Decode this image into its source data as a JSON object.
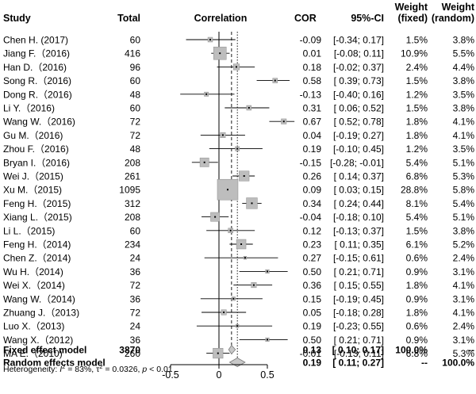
{
  "chart_data": {
    "type": "forest",
    "headers": {
      "study": "Study",
      "total": "Total",
      "plot": "Correlation",
      "estimate": "COR",
      "ci": "95%-CI",
      "weight_fixed_1": "Weight",
      "weight_fixed_2": "(fixed)",
      "weight_random_1": "Weight",
      "weight_random_2": "(random)"
    },
    "studies": [
      {
        "name": "Chen H. (2017)",
        "total": "60",
        "cor": "-0.09",
        "ci": "[-0.34;  0.17]",
        "w_fixed": "1.5%",
        "w_random": "3.8%",
        "est": -0.09,
        "lo": -0.34,
        "hi": 0.17,
        "wf": 1.5
      },
      {
        "name": "Jiang F.（2016)",
        "total": "416",
        "cor": "0.01",
        "ci": "[-0.08;  0.11]",
        "w_fixed": "10.9%",
        "w_random": "5.5%",
        "est": 0.01,
        "lo": -0.08,
        "hi": 0.11,
        "wf": 10.9
      },
      {
        "name": "Han D.（2016)",
        "total": "96",
        "cor": "0.18",
        "ci": "[-0.02;  0.37]",
        "w_fixed": "2.4%",
        "w_random": "4.4%",
        "est": 0.18,
        "lo": -0.02,
        "hi": 0.37,
        "wf": 2.4
      },
      {
        "name": "Song R.（2016)",
        "total": "60",
        "cor": "0.58",
        "ci": "[ 0.39;  0.73]",
        "w_fixed": "1.5%",
        "w_random": "3.8%",
        "est": 0.58,
        "lo": 0.39,
        "hi": 0.73,
        "wf": 1.5
      },
      {
        "name": "Dong R.（2016)",
        "total": "48",
        "cor": "-0.13",
        "ci": "[-0.40;  0.16]",
        "w_fixed": "1.2%",
        "w_random": "3.5%",
        "est": -0.13,
        "lo": -0.4,
        "hi": 0.16,
        "wf": 1.2
      },
      {
        "name": "Li Y.（2016)",
        "total": "60",
        "cor": "0.31",
        "ci": "[ 0.06;  0.52]",
        "w_fixed": "1.5%",
        "w_random": "3.8%",
        "est": 0.31,
        "lo": 0.06,
        "hi": 0.52,
        "wf": 1.5
      },
      {
        "name": "Wang W.（2016)",
        "total": "72",
        "cor": "0.67",
        "ci": "[ 0.52;  0.78]",
        "w_fixed": "1.8%",
        "w_random": "4.1%",
        "est": 0.67,
        "lo": 0.52,
        "hi": 0.78,
        "wf": 1.8
      },
      {
        "name": "Gu M.（2016)",
        "total": "72",
        "cor": "0.04",
        "ci": "[-0.19;  0.27]",
        "w_fixed": "1.8%",
        "w_random": "4.1%",
        "est": 0.04,
        "lo": -0.19,
        "hi": 0.27,
        "wf": 1.8
      },
      {
        "name": "Zhou F.（2016)",
        "total": "48",
        "cor": "0.19",
        "ci": "[-0.10;  0.45]",
        "w_fixed": "1.2%",
        "w_random": "3.5%",
        "est": 0.19,
        "lo": -0.1,
        "hi": 0.45,
        "wf": 1.2
      },
      {
        "name": "Bryan I.（2016)",
        "total": "208",
        "cor": "-0.15",
        "ci": "[-0.28; -0.01]",
        "w_fixed": "5.4%",
        "w_random": "5.1%",
        "est": -0.15,
        "lo": -0.28,
        "hi": -0.01,
        "wf": 5.4
      },
      {
        "name": "Wei J.（2015)",
        "total": "261",
        "cor": "0.26",
        "ci": "[ 0.14;  0.37]",
        "w_fixed": "6.8%",
        "w_random": "5.3%",
        "est": 0.26,
        "lo": 0.14,
        "hi": 0.37,
        "wf": 6.8
      },
      {
        "name": "Xu M.（2015)",
        "total": "1095",
        "cor": "0.09",
        "ci": "[ 0.03;  0.15]",
        "w_fixed": "28.8%",
        "w_random": "5.8%",
        "est": 0.09,
        "lo": 0.03,
        "hi": 0.15,
        "wf": 28.8
      },
      {
        "name": "Feng H.（2015)",
        "total": "312",
        "cor": "0.34",
        "ci": "[ 0.24;  0.44]",
        "w_fixed": "8.1%",
        "w_random": "5.4%",
        "est": 0.34,
        "lo": 0.24,
        "hi": 0.44,
        "wf": 8.1
      },
      {
        "name": "Xiang L.（2015)",
        "total": "208",
        "cor": "-0.04",
        "ci": "[-0.18;  0.10]",
        "w_fixed": "5.4%",
        "w_random": "5.1%",
        "est": -0.04,
        "lo": -0.18,
        "hi": 0.1,
        "wf": 5.4
      },
      {
        "name": "Li L.（2015)",
        "total": "60",
        "cor": "0.12",
        "ci": "[-0.13;  0.37]",
        "w_fixed": "1.5%",
        "w_random": "3.8%",
        "est": 0.12,
        "lo": -0.13,
        "hi": 0.37,
        "wf": 1.5
      },
      {
        "name": "Feng H.（2014)",
        "total": "234",
        "cor": "0.23",
        "ci": "[ 0.11;  0.35]",
        "w_fixed": "6.1%",
        "w_random": "5.2%",
        "est": 0.23,
        "lo": 0.11,
        "hi": 0.35,
        "wf": 6.1
      },
      {
        "name": "Chen Z.（2014)",
        "total": "24",
        "cor": "0.27",
        "ci": "[-0.15;  0.61]",
        "w_fixed": "0.6%",
        "w_random": "2.4%",
        "est": 0.27,
        "lo": -0.15,
        "hi": 0.61,
        "wf": 0.6
      },
      {
        "name": "Wu H.（2014)",
        "total": "36",
        "cor": "0.50",
        "ci": "[ 0.21;  0.71]",
        "w_fixed": "0.9%",
        "w_random": "3.1%",
        "est": 0.5,
        "lo": 0.21,
        "hi": 0.71,
        "wf": 0.9
      },
      {
        "name": "Wei X.（2014)",
        "total": "72",
        "cor": "0.36",
        "ci": "[ 0.15;  0.55]",
        "w_fixed": "1.8%",
        "w_random": "4.1%",
        "est": 0.36,
        "lo": 0.15,
        "hi": 0.55,
        "wf": 1.8
      },
      {
        "name": "Wang W.（2014)",
        "total": "36",
        "cor": "0.15",
        "ci": "[-0.19;  0.45]",
        "w_fixed": "0.9%",
        "w_random": "3.1%",
        "est": 0.15,
        "lo": -0.19,
        "hi": 0.45,
        "wf": 0.9
      },
      {
        "name": "Zhuang J.（2013)",
        "total": "72",
        "cor": "0.05",
        "ci": "[-0.18;  0.28]",
        "w_fixed": "1.8%",
        "w_random": "4.1%",
        "est": 0.05,
        "lo": -0.18,
        "hi": 0.28,
        "wf": 1.8
      },
      {
        "name": "Luo X.（2013)",
        "total": "24",
        "cor": "0.19",
        "ci": "[-0.23;  0.55]",
        "w_fixed": "0.6%",
        "w_random": "2.4%",
        "est": 0.19,
        "lo": -0.23,
        "hi": 0.55,
        "wf": 0.6
      },
      {
        "name": "Wang X.（2012)",
        "total": "36",
        "cor": "0.50",
        "ci": "[ 0.21;  0.71]",
        "w_fixed": "0.9%",
        "w_random": "3.1%",
        "est": 0.5,
        "lo": 0.21,
        "hi": 0.71,
        "wf": 0.9
      },
      {
        "name": "MA E.（2010)",
        "total": "260",
        "cor": "-0.01",
        "ci": "[-0.13;  0.11]",
        "w_fixed": "6.8%",
        "w_random": "5.3%",
        "est": -0.01,
        "lo": -0.13,
        "hi": 0.11,
        "wf": 6.8
      }
    ],
    "summaries": [
      {
        "name": "Fixed effect model",
        "total": "3870",
        "cor": "0.13",
        "ci": "[ 0.10;  0.17]",
        "w_fixed": "100.0%",
        "w_random": "--",
        "est": 0.13,
        "lo": 0.1,
        "hi": 0.17
      },
      {
        "name": "Random effects model",
        "total": "",
        "cor": "0.19",
        "ci": "[ 0.11;  0.27]",
        "w_fixed": "--",
        "w_random": "100.0%",
        "est": 0.19,
        "lo": 0.11,
        "hi": 0.27
      }
    ],
    "heterogeneity": {
      "label": "Heterogeneity: ",
      "i2_symbol": "I",
      "i2_sup": "2",
      "i2_value": " = 83%, ",
      "tau2_symbol": "τ",
      "tau2_sup": "2",
      "tau2_value": " = 0.0326, ",
      "p_symbol": "p",
      "p_value": " < 0.01"
    },
    "x_axis": {
      "ticks": [
        -0.5,
        0,
        0.5
      ],
      "tick_labels": [
        "-0.5",
        "0",
        "0.5"
      ],
      "xlim": [
        -0.75,
        0.78
      ],
      "reference_line": 0
    }
  },
  "colors": {
    "text": "#000000",
    "square_fill": "#bdbdbd",
    "square_stroke": "#8c8c8c",
    "diamond_fill": "#c8c8c8",
    "line": "#000000"
  }
}
